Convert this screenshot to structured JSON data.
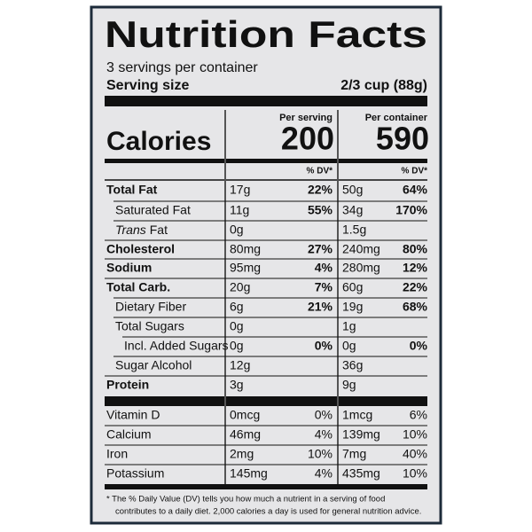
{
  "header": {
    "title": "Nutrition Facts",
    "servings": "3 servings per container",
    "serving_size_label": "Serving size",
    "serving_size": "2/3 cup (88g)"
  },
  "calories": {
    "label": "Calories",
    "per_serving_heading": "Per serving",
    "per_container_heading": "Per container",
    "per_serving": "200",
    "per_container": "590"
  },
  "dv_headings": [
    "% DV*",
    "% DV*"
  ],
  "nutrients": [
    {
      "name": "Total Fat",
      "serving": "17g",
      "serving_dv": "22%",
      "container": "50g",
      "container_dv": "64%"
    },
    {
      "name": "Saturated Fat",
      "serving": "11g",
      "serving_dv": "55%",
      "container": "34g",
      "container_dv": "170%"
    },
    {
      "name_italic": "Trans",
      "name": "Fat",
      "serving": "0g",
      "container": "1.5g"
    },
    {
      "name": "Cholesterol",
      "serving": "80mg",
      "serving_dv": "27%",
      "container": "240mg",
      "container_dv": "80%"
    },
    {
      "name": "Sodium",
      "serving": "95mg",
      "serving_dv": "4%",
      "container": "280mg",
      "container_dv": "12%"
    },
    {
      "name": "Total Carb.",
      "serving": "20g",
      "serving_dv": "7%",
      "container": "60g",
      "container_dv": "22%"
    },
    {
      "name": "Dietary Fiber",
      "serving": "6g",
      "serving_dv": "21%",
      "container": "19g",
      "container_dv": "68%"
    },
    {
      "name": "Total Sugars",
      "serving": "0g",
      "container": "1g"
    },
    {
      "name": "Incl. Added Sugars",
      "serving": "0g",
      "serving_dv": "0%",
      "container": "0g",
      "container_dv": "0%"
    },
    {
      "name": "Sugar Alcohol",
      "serving": "12g",
      "container": "36g"
    },
    {
      "name": "Protein",
      "serving": "3g",
      "container": "9g"
    }
  ],
  "vitamins": [
    {
      "name": "Vitamin D",
      "serving": "0mcg",
      "serving_dv": "0%",
      "container": "1mcg",
      "container_dv": "6%"
    },
    {
      "name": "Calcium",
      "serving": "46mg",
      "serving_dv": "4%",
      "container": "139mg",
      "container_dv": "10%"
    },
    {
      "name": "Iron",
      "serving": "2mg",
      "serving_dv": "10%",
      "container": "7mg",
      "container_dv": "40%"
    },
    {
      "name": "Potassium",
      "serving": "145mg",
      "serving_dv": "4%",
      "container": "435mg",
      "container_dv": "10%"
    }
  ],
  "footnote": [
    "* The % Daily Value (DV) tells you how much a nutrient in a serving of food",
    "contributes to a daily diet. 2,000 calories a day is used for general nutrition advice."
  ]
}
